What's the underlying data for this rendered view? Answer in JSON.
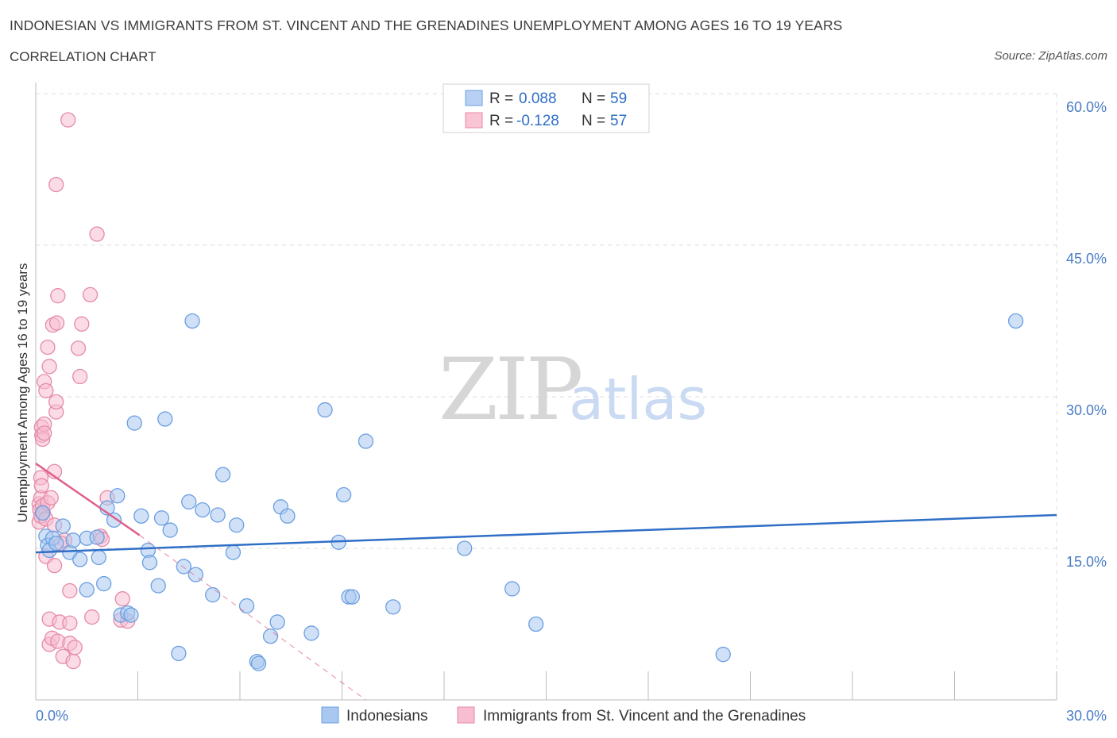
{
  "header": {
    "title": "INDONESIAN VS IMMIGRANTS FROM ST. VINCENT AND THE GRENADINES UNEMPLOYMENT AMONG AGES 16 TO 19 YEARS",
    "subtitle": "CORRELATION CHART",
    "source": "Source: ZipAtlas.com"
  },
  "watermark": {
    "zip": "ZIP",
    "atlas": "atlas"
  },
  "legend": {
    "r_label": "R =",
    "n_label": "N =",
    "rows": [
      {
        "r": "0.088",
        "n": "59",
        "fill": "#b7d0f3",
        "stroke": "#6c9fe0"
      },
      {
        "r": "-0.128",
        "n": "57",
        "fill": "#f9c4d4",
        "stroke": "#e98aa8"
      }
    ]
  },
  "colors": {
    "blue_fill": "#a9c8f0",
    "blue_stroke": "#6b9fe0",
    "blue_line": "#2f6fc7",
    "pink_fill": "#f7bdd0",
    "pink_stroke": "#e58aa9",
    "pink_line": "#e0608a",
    "grid": "#dddddd",
    "axis_text": "#4a7cc4"
  },
  "chart_data": {
    "type": "scatter",
    "title": "INDONESIAN VS IMMIGRANTS FROM ST. VINCENT AND THE GRENADINES UNEMPLOYMENT AMONG AGES 16 TO 19 YEARS",
    "xlabel": "",
    "ylabel": "Unemployment Among Ages 16 to 19 years",
    "xlim": [
      0,
      30
    ],
    "ylim": [
      0,
      60
    ],
    "x_tick_labels": [
      "0.0%",
      "30.0%"
    ],
    "y_ticks": [
      15,
      30,
      45,
      60
    ],
    "y_tick_labels": [
      "15.0%",
      "30.0%",
      "45.0%",
      "60.0%"
    ],
    "grid": true,
    "legend_position": "top-center",
    "series": [
      {
        "name": "Indonesians",
        "r": 0.088,
        "n": 59,
        "trend": {
          "x": [
            0,
            30
          ],
          "y": [
            14.6,
            18.3
          ]
        },
        "points": [
          [
            0.2,
            18.5
          ],
          [
            0.3,
            16.2
          ],
          [
            0.35,
            15.3
          ],
          [
            0.4,
            14.8
          ],
          [
            0.5,
            16.0
          ],
          [
            0.6,
            15.5
          ],
          [
            0.8,
            17.2
          ],
          [
            1.0,
            14.6
          ],
          [
            1.1,
            15.8
          ],
          [
            1.3,
            13.9
          ],
          [
            1.5,
            16.0
          ],
          [
            1.5,
            10.9
          ],
          [
            1.8,
            16.1
          ],
          [
            1.85,
            14.1
          ],
          [
            2.0,
            11.5
          ],
          [
            2.1,
            19.0
          ],
          [
            2.3,
            17.8
          ],
          [
            2.4,
            20.2
          ],
          [
            2.5,
            8.4
          ],
          [
            2.7,
            8.6
          ],
          [
            2.8,
            8.4
          ],
          [
            2.9,
            27.4
          ],
          [
            3.1,
            18.2
          ],
          [
            3.3,
            14.8
          ],
          [
            3.35,
            13.6
          ],
          [
            3.6,
            11.3
          ],
          [
            3.7,
            18.0
          ],
          [
            3.8,
            27.8
          ],
          [
            3.95,
            16.8
          ],
          [
            4.2,
            4.6
          ],
          [
            4.35,
            13.2
          ],
          [
            4.5,
            19.6
          ],
          [
            4.6,
            37.5
          ],
          [
            4.7,
            12.4
          ],
          [
            4.9,
            18.8
          ],
          [
            5.2,
            10.4
          ],
          [
            5.35,
            18.3
          ],
          [
            5.5,
            22.3
          ],
          [
            5.8,
            14.6
          ],
          [
            5.9,
            17.3
          ],
          [
            6.2,
            9.3
          ],
          [
            6.5,
            3.8
          ],
          [
            6.55,
            3.6
          ],
          [
            6.9,
            6.3
          ],
          [
            7.1,
            7.7
          ],
          [
            7.2,
            19.1
          ],
          [
            7.4,
            18.2
          ],
          [
            8.1,
            6.6
          ],
          [
            8.5,
            28.7
          ],
          [
            8.9,
            15.6
          ],
          [
            9.05,
            20.3
          ],
          [
            9.2,
            10.2
          ],
          [
            9.3,
            10.2
          ],
          [
            9.7,
            25.6
          ],
          [
            10.5,
            9.2
          ],
          [
            12.6,
            15.0
          ],
          [
            14.0,
            11.0
          ],
          [
            14.7,
            7.5
          ],
          [
            20.2,
            4.5
          ],
          [
            28.8,
            37.5
          ]
        ]
      },
      {
        "name": "Immigrants from St. Vincent and the Grenadines",
        "r": -0.128,
        "n": 57,
        "trend": {
          "x": [
            0,
            3.05
          ],
          "y": [
            23.4,
            16.3
          ]
        },
        "trend_extension": {
          "x": [
            3.05,
            9.7
          ],
          "y": [
            16.3,
            0
          ]
        },
        "points": [
          [
            0.1,
            17.6
          ],
          [
            0.1,
            19.4
          ],
          [
            0.12,
            18.8
          ],
          [
            0.15,
            20.0
          ],
          [
            0.15,
            18.2
          ],
          [
            0.15,
            22.0
          ],
          [
            0.17,
            21.2
          ],
          [
            0.17,
            27.0
          ],
          [
            0.18,
            26.2
          ],
          [
            0.2,
            25.8
          ],
          [
            0.2,
            19.2
          ],
          [
            0.22,
            18.5
          ],
          [
            0.25,
            27.3
          ],
          [
            0.25,
            26.4
          ],
          [
            0.25,
            31.5
          ],
          [
            0.3,
            17.9
          ],
          [
            0.3,
            14.2
          ],
          [
            0.3,
            30.6
          ],
          [
            0.35,
            34.9
          ],
          [
            0.35,
            19.5
          ],
          [
            0.4,
            8.0
          ],
          [
            0.4,
            5.5
          ],
          [
            0.4,
            33.0
          ],
          [
            0.45,
            20.0
          ],
          [
            0.48,
            6.1
          ],
          [
            0.5,
            37.1
          ],
          [
            0.55,
            17.3
          ],
          [
            0.55,
            22.6
          ],
          [
            0.55,
            13.3
          ],
          [
            0.6,
            51.0
          ],
          [
            0.6,
            28.5
          ],
          [
            0.6,
            29.5
          ],
          [
            0.62,
            37.3
          ],
          [
            0.65,
            40.0
          ],
          [
            0.65,
            5.8
          ],
          [
            0.7,
            7.7
          ],
          [
            0.8,
            4.3
          ],
          [
            0.85,
            15.8
          ],
          [
            0.95,
            57.4
          ],
          [
            1.0,
            10.8
          ],
          [
            1.0,
            7.6
          ],
          [
            1.0,
            5.6
          ],
          [
            1.1,
            3.8
          ],
          [
            1.25,
            34.8
          ],
          [
            1.3,
            32.0
          ],
          [
            1.35,
            37.2
          ],
          [
            1.6,
            40.1
          ],
          [
            1.65,
            8.2
          ],
          [
            1.8,
            46.1
          ],
          [
            1.9,
            16.2
          ],
          [
            1.95,
            15.9
          ],
          [
            2.1,
            20.0
          ],
          [
            2.5,
            7.9
          ],
          [
            2.55,
            10.0
          ],
          [
            2.7,
            7.8
          ],
          [
            0.75,
            15.5
          ],
          [
            1.15,
            5.2
          ]
        ]
      }
    ]
  },
  "bottom_legend": [
    {
      "label": "Indonesians"
    },
    {
      "label": "Immigrants from St. Vincent and the Grenadines"
    }
  ]
}
